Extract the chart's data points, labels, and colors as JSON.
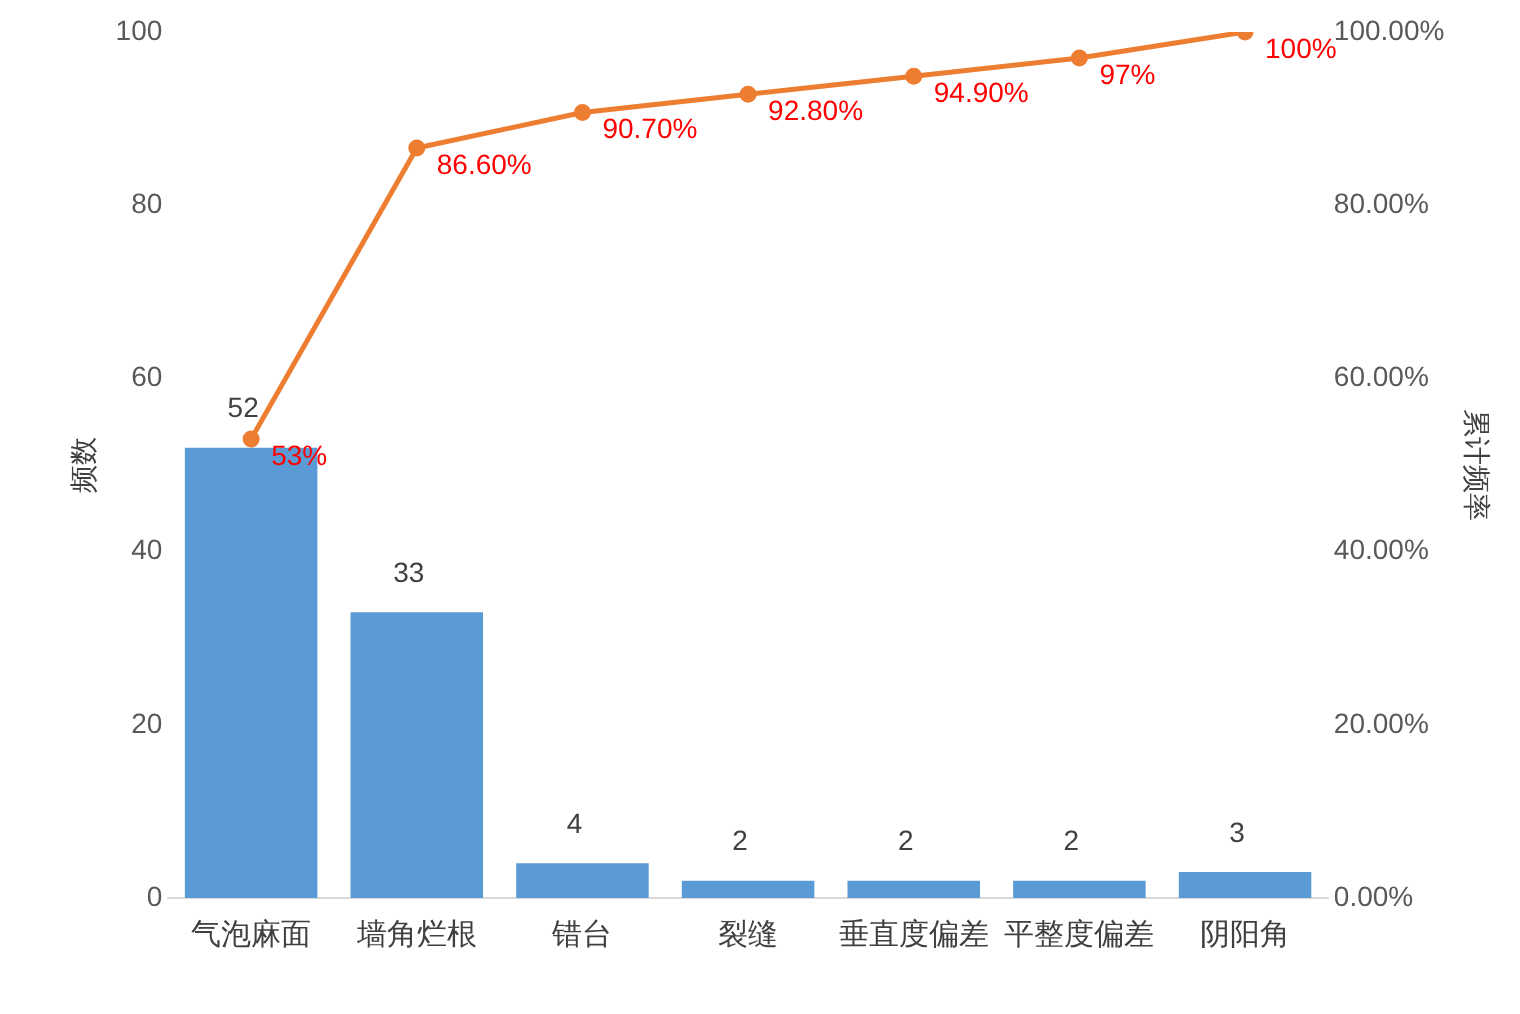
{
  "chart_data": {
    "type": "bar",
    "categories": [
      "气泡麻面",
      "墙角烂根",
      "错台",
      "裂缝",
      "垂直度偏差",
      "平整度偏差",
      "阴阳角"
    ],
    "ylabel": "频数",
    "y2label": "累计频率",
    "ylim": [
      0,
      100
    ],
    "yticks": [
      0,
      20,
      40,
      60,
      80,
      100
    ],
    "y2lim": [
      0,
      100
    ],
    "y2ticks": [
      {
        "value": 0,
        "label": "0.00%"
      },
      {
        "value": 20,
        "label": "20.00%"
      },
      {
        "value": 40,
        "label": "40.00%"
      },
      {
        "value": 60,
        "label": "60.00%"
      },
      {
        "value": 80,
        "label": "80.00%"
      },
      {
        "value": 100,
        "label": "100.00%"
      }
    ],
    "series": [
      {
        "color": "#5b9bd5",
        "values": [
          52,
          33,
          4,
          2,
          2,
          2,
          3
        ],
        "value_labels": [
          "52",
          "33",
          "4",
          "2",
          "2",
          "2",
          "3"
        ]
      },
      {
        "type": "line",
        "axis": "y2",
        "color": "#ed7d31",
        "values": [
          53,
          86.6,
          90.7,
          92.8,
          94.9,
          97,
          100
        ],
        "value_labels": [
          "53%",
          "86.60%",
          "90.70%",
          "92.80%",
          "94.90%",
          "97%",
          "100%"
        ]
      }
    ],
    "marker": "circle",
    "line_style": "solid",
    "grid": false,
    "legend": false
  }
}
